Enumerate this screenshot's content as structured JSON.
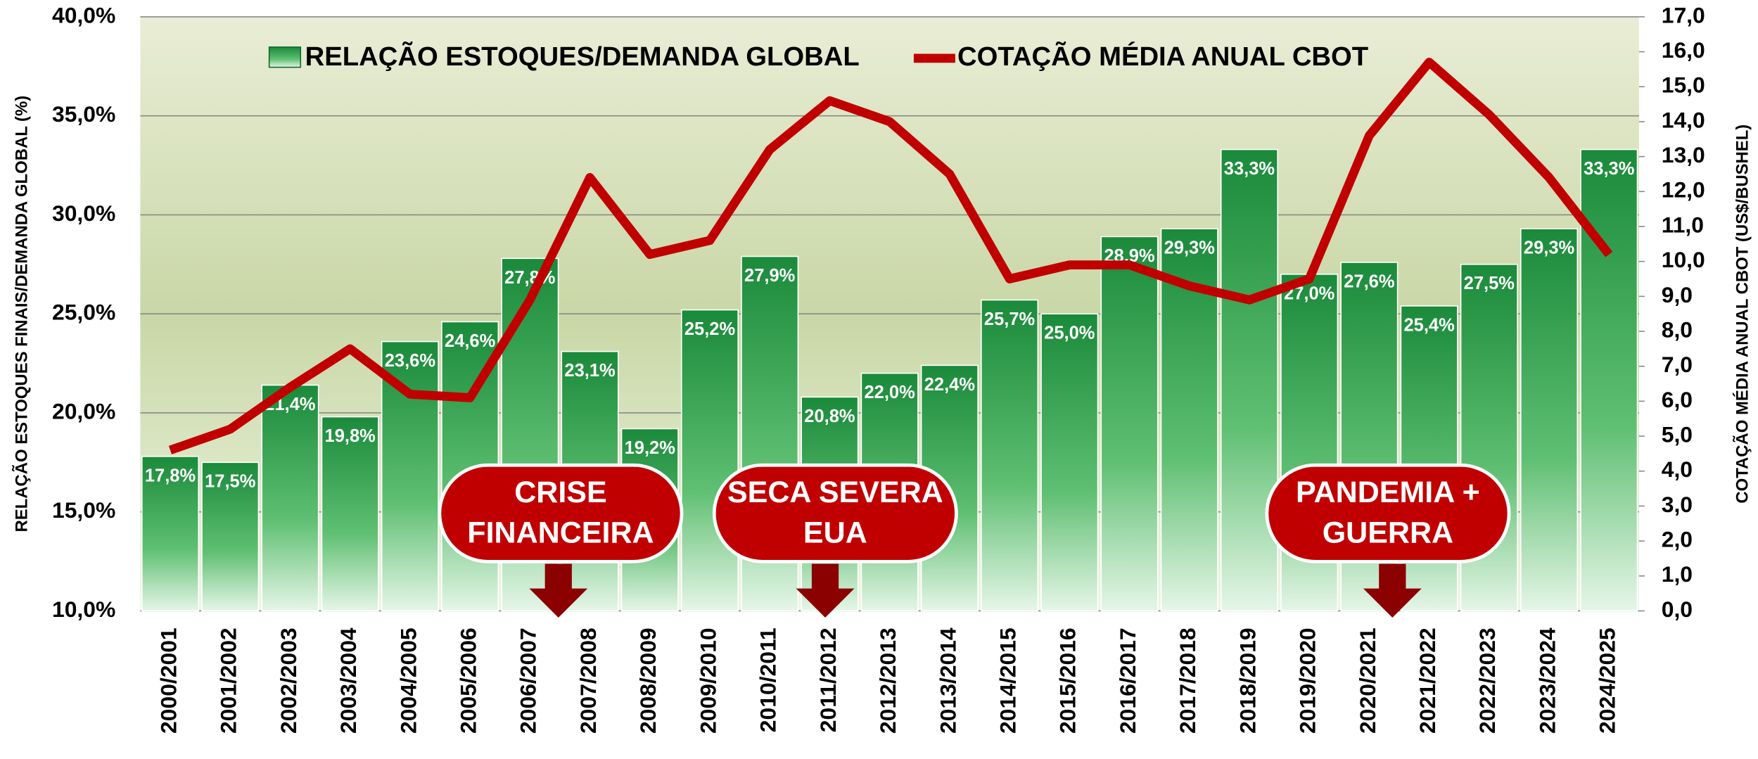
{
  "chart_data": {
    "type": "bar_line",
    "legend": {
      "bar": "RELAÇÃO ESTOQUES/DEMANDA GLOBAL",
      "line": "COTAÇÃO MÉDIA ANUAL CBOT"
    },
    "y_label": "RELAÇÃO ESTOQUES FINAIS/DEMANDA GLOBAL (%)",
    "y2_label": "COTAÇÃO MÉDIA ANUAL CBOT (US$/BUSHEL)",
    "categories": [
      "2000/2001",
      "2001/2002",
      "2002/2003",
      "2003/2004",
      "2004/2005",
      "2005/2006",
      "2006/2007",
      "2007/2008",
      "2008/2009",
      "2009/2010",
      "2010/2011",
      "2011/2012",
      "2012/2013",
      "2013/2014",
      "2014/2015",
      "2015/2016",
      "2016/2017",
      "2017/2018",
      "2018/2019",
      "2019/2020",
      "2020/2021",
      "2021/2022",
      "2022/2023",
      "2023/2024",
      "2024/2025"
    ],
    "series": [
      {
        "name": "RELAÇÃO ESTOQUES/DEMANDA GLOBAL",
        "color": "#1e8c3a",
        "values": [
          17.8,
          17.5,
          21.4,
          19.8,
          23.6,
          24.6,
          27.8,
          23.1,
          19.2,
          25.2,
          27.9,
          20.8,
          22.0,
          22.4,
          25.7,
          25.0,
          28.9,
          29.3,
          33.3,
          27.0,
          27.6,
          25.4,
          27.5,
          29.3,
          33.3
        ],
        "value_labels": [
          "17,8%",
          "17,5%",
          "21,4%",
          "19,8%",
          "23,6%",
          "24,6%",
          "27,8%",
          "23,1%",
          "19,2%",
          "25,2%",
          "27,9%",
          "20,8%",
          "22,0%",
          "22,4%",
          "25,7%",
          "25,0%",
          "28,9%",
          "29,3%",
          "33,3%",
          "27,0%",
          "27,6%",
          "25,4%",
          "27,5%",
          "29,3%",
          "33,3%"
        ]
      },
      {
        "name": "COTAÇÃO MÉDIA ANUAL CBOT",
        "color": "#c00000",
        "axis": "y2",
        "values": [
          4.6,
          5.2,
          6.4,
          7.5,
          6.2,
          6.1,
          8.9,
          12.4,
          10.2,
          10.6,
          13.2,
          14.6,
          14.0,
          12.5,
          9.5,
          9.9,
          9.9,
          9.3,
          8.9,
          9.5,
          13.6,
          15.7,
          14.2,
          12.4,
          10.2
        ]
      }
    ],
    "ylim": [
      10,
      40
    ],
    "yticks": [
      {
        "value": 10,
        "label": "10,0%"
      },
      {
        "value": 15,
        "label": "15,0%"
      },
      {
        "value": 20,
        "label": "20,0%"
      },
      {
        "value": 25,
        "label": "25,0%"
      },
      {
        "value": 30,
        "label": "30,0%"
      },
      {
        "value": 35,
        "label": "35,0%"
      },
      {
        "value": 40,
        "label": "40,0%"
      }
    ],
    "y2lim": [
      0,
      17
    ],
    "y2ticks": [
      {
        "value": 0,
        "label": "0,0"
      },
      {
        "value": 1,
        "label": "1,0"
      },
      {
        "value": 2,
        "label": "2,0"
      },
      {
        "value": 3,
        "label": "3,0"
      },
      {
        "value": 4,
        "label": "4,0"
      },
      {
        "value": 5,
        "label": "5,0"
      },
      {
        "value": 6,
        "label": "6,0"
      },
      {
        "value": 7,
        "label": "7,0"
      },
      {
        "value": 8,
        "label": "8,0"
      },
      {
        "value": 9,
        "label": "9,0"
      },
      {
        "value": 10,
        "label": "10,0"
      },
      {
        "value": 11,
        "label": "11,0"
      },
      {
        "value": 12,
        "label": "12,0"
      },
      {
        "value": 13,
        "label": "13,0"
      },
      {
        "value": 14,
        "label": "14,0"
      },
      {
        "value": 15,
        "label": "15,0"
      },
      {
        "value": 16,
        "label": "16,0"
      },
      {
        "value": 17,
        "label": "17,0"
      }
    ],
    "grid": true,
    "annotations": [
      {
        "lines": [
          "CRISE",
          "FINANCEIRA"
        ]
      },
      {
        "lines": [
          "SECA SEVERA",
          "EUA"
        ]
      },
      {
        "lines": [
          "PANDEMIA +",
          "GUERRA"
        ]
      }
    ]
  }
}
